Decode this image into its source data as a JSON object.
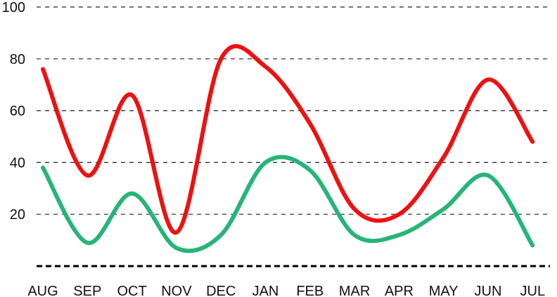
{
  "chart_data": {
    "type": "line",
    "title": "",
    "xlabel": "",
    "ylabel": "",
    "categories": [
      "AUG",
      "SEP",
      "OCT",
      "NOV",
      "DEC",
      "JAN",
      "FEB",
      "MAR",
      "APR",
      "MAY",
      "JUN",
      "JUL"
    ],
    "ylim": [
      0,
      100
    ],
    "yticks": [
      20,
      40,
      60,
      80,
      100
    ],
    "grid": true,
    "smooth": true,
    "series": [
      {
        "color": "#ee1111",
        "values": [
          76,
          35,
          66,
          13,
          80,
          77,
          55,
          22,
          20,
          42,
          72,
          48
        ]
      },
      {
        "color": "#27b577",
        "values": [
          38,
          9,
          28,
          7,
          12,
          40,
          37,
          12,
          12,
          22,
          35,
          8
        ]
      }
    ]
  }
}
